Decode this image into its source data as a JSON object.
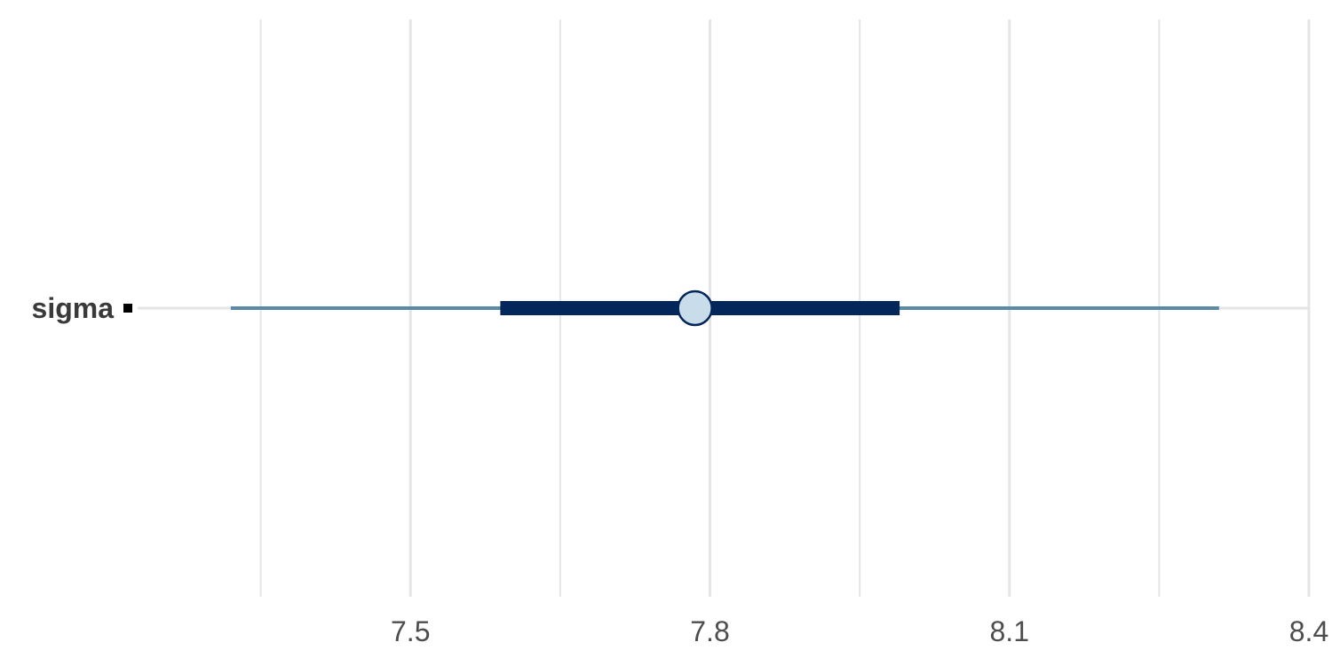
{
  "chart_data": {
    "type": "interval",
    "title": "",
    "xlabel": "",
    "ylabel": "",
    "xlim": [
      7.2,
      8.4
    ],
    "x_ticks": [
      7.5,
      7.8,
      8.1,
      8.4
    ],
    "x_tick_labels": [
      "7.5",
      "7.8",
      "8.1",
      "8.4"
    ],
    "grid": true,
    "parameters": [
      {
        "label": "sigma",
        "point": 7.785,
        "inner_interval": [
          7.59,
          7.99
        ],
        "outer_interval": [
          7.32,
          8.31
        ]
      }
    ]
  },
  "colors": {
    "background": "#ffffff",
    "grid": "#e5e5e5",
    "outer_interval": "#5b8aa6",
    "inner_interval": "#03275a",
    "point_fill": "#c8dcea",
    "point_stroke": "#03275a"
  }
}
